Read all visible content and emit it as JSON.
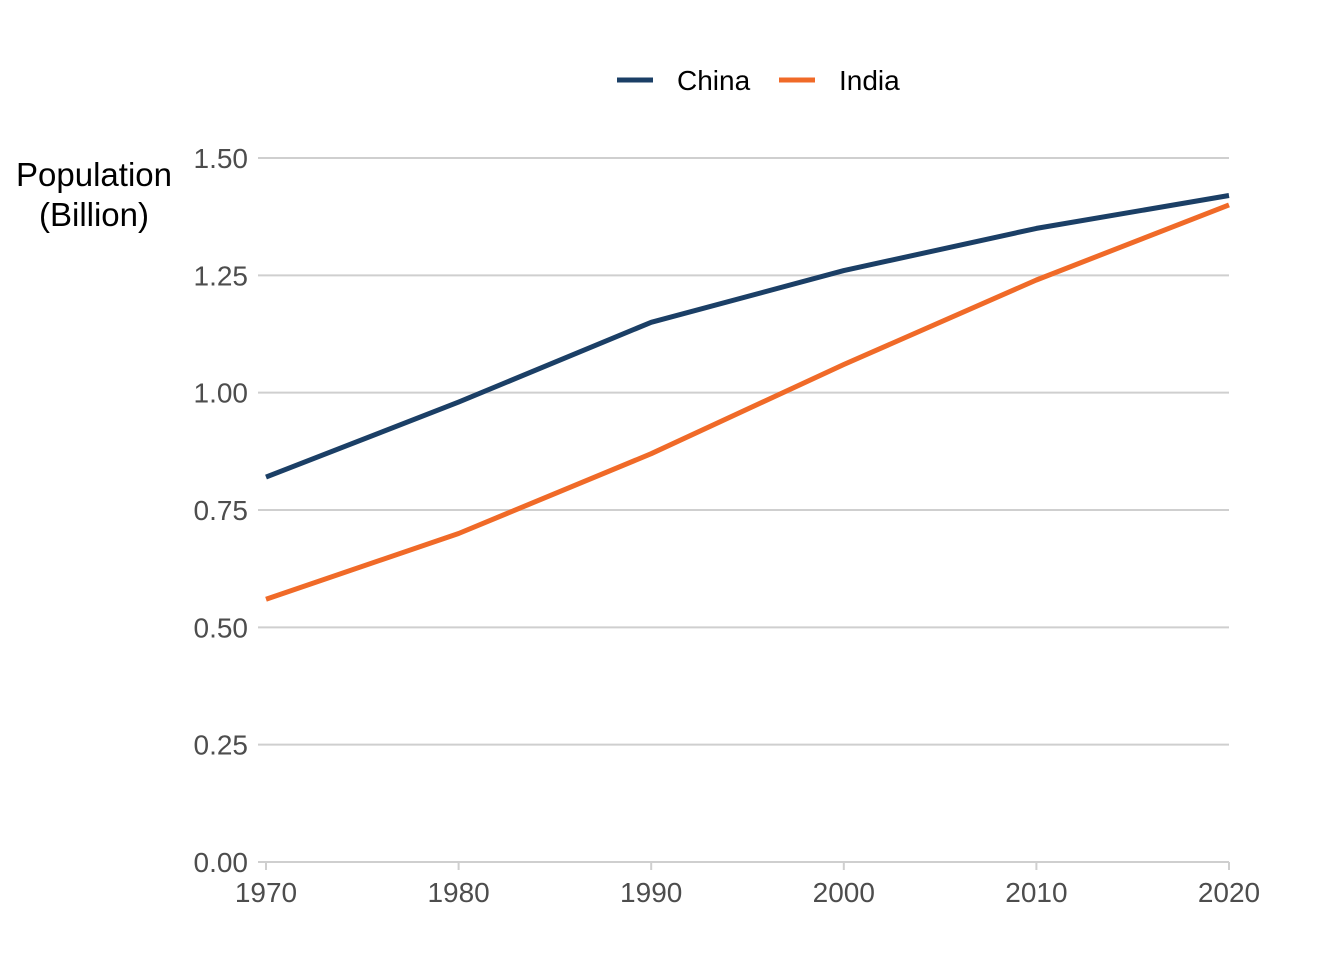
{
  "chart_data": {
    "type": "line",
    "x": [
      1970,
      1980,
      1990,
      2000,
      2010,
      2020
    ],
    "series": [
      {
        "name": "China",
        "color": "#1b3f66",
        "values": [
          0.82,
          0.98,
          1.15,
          1.26,
          1.35,
          1.42
        ]
      },
      {
        "name": "India",
        "color": "#f06a28",
        "values": [
          0.56,
          0.7,
          0.87,
          1.06,
          1.24,
          1.4
        ]
      }
    ],
    "title": "",
    "xlabel": "",
    "ylabel_lines": [
      "Population",
      "(Billion)"
    ],
    "xlim": [
      1970,
      2020
    ],
    "ylim": [
      0,
      1.5
    ],
    "x_ticks": [
      1970,
      1980,
      1990,
      2000,
      2010,
      2020
    ],
    "x_tick_labels": [
      "1970",
      "1980",
      "1990",
      "2000",
      "2010",
      "2020"
    ],
    "y_ticks": [
      0,
      0.25,
      0.5,
      0.75,
      1.0,
      1.25,
      1.5
    ],
    "y_tick_labels": [
      "0.00",
      "0.25",
      "0.50",
      "0.75",
      "1.00",
      "1.25",
      "1.50"
    ],
    "grid": "horizontal",
    "legend_position": "top-center"
  }
}
